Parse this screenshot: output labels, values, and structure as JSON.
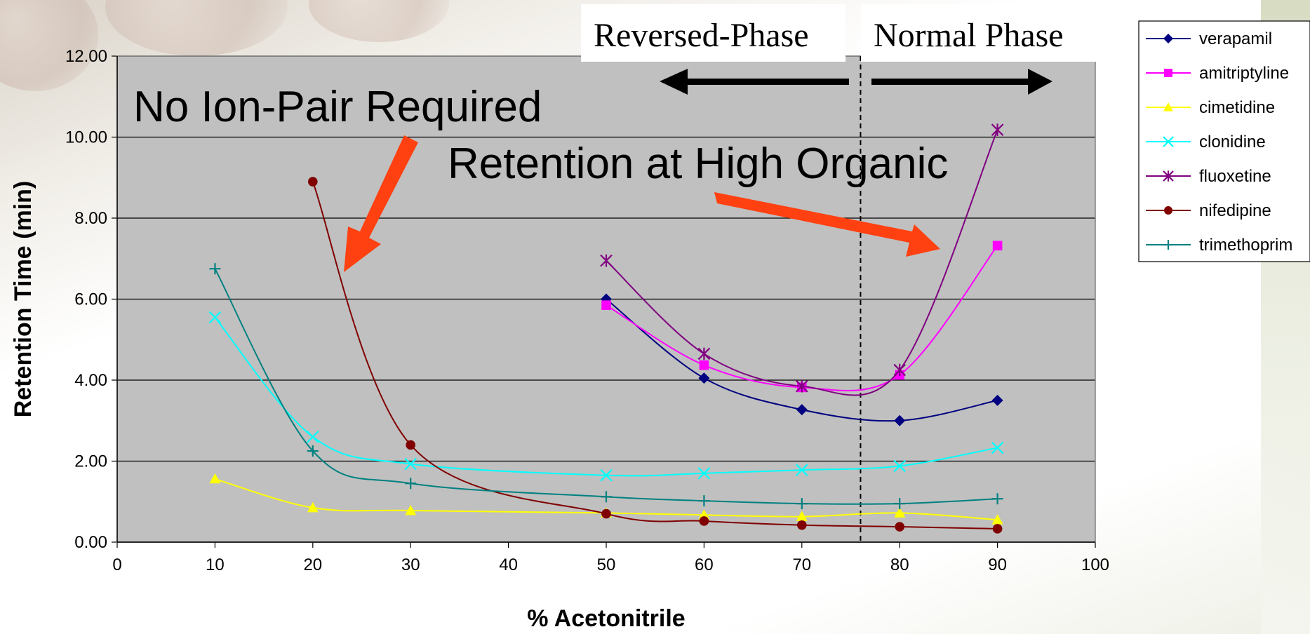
{
  "chart_data": {
    "type": "line",
    "xlabel": "% Acetonitrile",
    "ylabel": "Retention Time (min)",
    "xlim": [
      0,
      100
    ],
    "ylim": [
      0,
      12
    ],
    "x_ticks": [
      "0",
      "10",
      "20",
      "30",
      "40",
      "50",
      "60",
      "70",
      "80",
      "90",
      "100"
    ],
    "y_ticks": [
      "0.00",
      "2.00",
      "4.00",
      "6.00",
      "8.00",
      "10.00",
      "12.00"
    ],
    "grid": "horizontal",
    "plot_background": "#c0c0c0",
    "legend_position": "right",
    "divider_x": 76,
    "series": [
      {
        "name": "verapamil",
        "color": "#000080",
        "marker": "diamond",
        "points": [
          [
            50,
            6.0
          ],
          [
            60,
            4.05
          ],
          [
            70,
            3.27
          ],
          [
            80,
            3.0
          ],
          [
            90,
            3.5
          ]
        ]
      },
      {
        "name": "amitriptyline",
        "color": "#ff00ff",
        "marker": "square",
        "points": [
          [
            50,
            5.85
          ],
          [
            60,
            4.37
          ],
          [
            70,
            3.82
          ],
          [
            80,
            4.13
          ],
          [
            90,
            7.32
          ]
        ]
      },
      {
        "name": "cimetidine",
        "color": "#ffff00",
        "marker": "triangle",
        "points": [
          [
            10,
            1.56
          ],
          [
            20,
            0.85
          ],
          [
            30,
            0.78
          ],
          [
            50,
            0.72
          ],
          [
            60,
            0.67
          ],
          [
            70,
            0.63
          ],
          [
            80,
            0.72
          ],
          [
            90,
            0.55
          ]
        ]
      },
      {
        "name": "clonidine",
        "color": "#00ffff",
        "marker": "x",
        "points": [
          [
            10,
            5.55
          ],
          [
            20,
            2.6
          ],
          [
            30,
            1.93
          ],
          [
            50,
            1.65
          ],
          [
            60,
            1.7
          ],
          [
            70,
            1.78
          ],
          [
            80,
            1.88
          ],
          [
            90,
            2.33
          ]
        ]
      },
      {
        "name": "fluoxetine",
        "color": "#800080",
        "marker": "asterisk",
        "points": [
          [
            50,
            6.95
          ],
          [
            60,
            4.65
          ],
          [
            70,
            3.85
          ],
          [
            80,
            4.25
          ],
          [
            90,
            10.18
          ]
        ]
      },
      {
        "name": "nifedipine",
        "color": "#800000",
        "marker": "circle",
        "points": [
          [
            20,
            8.9
          ],
          [
            30,
            2.4
          ],
          [
            50,
            0.7
          ],
          [
            60,
            0.52
          ],
          [
            70,
            0.42
          ],
          [
            80,
            0.38
          ],
          [
            90,
            0.33
          ]
        ]
      },
      {
        "name": "trimethoprim",
        "color": "#008080",
        "marker": "plus",
        "points": [
          [
            10,
            6.75
          ],
          [
            20,
            2.25
          ],
          [
            30,
            1.45
          ],
          [
            50,
            1.12
          ],
          [
            60,
            1.02
          ],
          [
            70,
            0.95
          ],
          [
            80,
            0.95
          ],
          [
            90,
            1.07
          ]
        ]
      }
    ]
  },
  "annotations": {
    "no_ion_pair": "No Ion-Pair Required",
    "high_organic": "Retention at High Organic",
    "reversed_phase": "Reversed-Phase",
    "normal_phase": "Normal Phase"
  },
  "colors": {
    "arrow_red": "#ff4010",
    "arrow_black": "#000000"
  }
}
